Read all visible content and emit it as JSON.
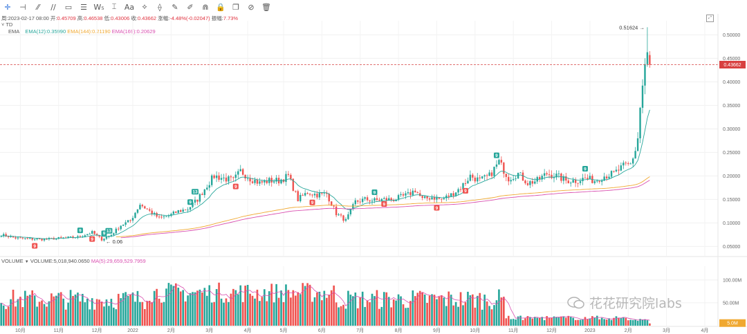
{
  "toolbar": {
    "icons": [
      "crosshair-icon",
      "horizontal-line-icon",
      "trend-line-icon",
      "parallel-channel-icon",
      "rectangle-icon",
      "fib-retracement-icon",
      "elliott-wave-icon",
      "measure-icon",
      "text-icon",
      "pattern-icon",
      "gann-icon",
      "brush-icon",
      "ruler-icon",
      "magnet-icon",
      "lock-icon",
      "copy-icon",
      "hide-icon",
      "trash-icon"
    ],
    "glyphs": [
      "✛",
      "⊣",
      "⁄⁄",
      "∕∕",
      "▭",
      "☰",
      "W₅",
      "⌶",
      "Aa",
      "⟡",
      "⟠",
      "✎",
      "✐",
      "⋒",
      "🔒",
      "❐",
      "⊘",
      "🗑"
    ]
  },
  "info": {
    "date": "周:2023-02-17 08:00",
    "open_label": "开:",
    "open": "0.45709",
    "high_label": "高:",
    "high": "0.46538",
    "low_label": "低:",
    "low": "0.43006",
    "close_label": "收:",
    "close": "0.43662",
    "change_label": "涨幅:",
    "change": "-4.48%(-0.02047)",
    "amp_label": "振幅:",
    "amp": "7.73%"
  },
  "td_label": "TD",
  "ema": {
    "label": "EMA",
    "ema12": "EMA(12):0.35990",
    "ema144": "EMA(144):0.21190",
    "ema169": "EMA(169):0.20629",
    "colors": {
      "ema12": "#26a69a",
      "ema144": "#f0a830",
      "ema169": "#d94fb0"
    }
  },
  "volume_legend": {
    "label": "VOLUME",
    "value": "VOLUME:5,018,940.0650",
    "ma": "MA(5):29,659,529.7959"
  },
  "colors": {
    "up": "#26a69a",
    "down": "#ef5350",
    "price_tag": "#d84040",
    "last_vol_tag": "#f0a830"
  },
  "watermark": "花花研究院labs",
  "chart_data": {
    "type": "candlestick",
    "price_axis": {
      "min": 0.03,
      "max": 0.53,
      "ticks": [
        0.05,
        0.1,
        0.15,
        0.2,
        0.25,
        0.3,
        0.35,
        0.4,
        0.45,
        0.5
      ],
      "tick_labels": [
        "0.05000",
        "0.10000",
        "0.15000",
        "0.20000",
        "0.25000",
        "0.30000",
        "0.35000",
        "0.40000",
        "0.45000",
        "0.50000"
      ]
    },
    "volume_axis": {
      "max": 130,
      "ticks": [
        50,
        100
      ],
      "tick_labels": [
        "50.00M",
        "100.00M"
      ]
    },
    "x_labels": [
      {
        "i": 8,
        "label": "10月"
      },
      {
        "i": 24,
        "label": "11月"
      },
      {
        "i": 40,
        "label": "12月"
      },
      {
        "i": 55,
        "label": "2022"
      },
      {
        "i": 71,
        "label": "2月"
      },
      {
        "i": 87,
        "label": "3月"
      },
      {
        "i": 103,
        "label": "4月"
      },
      {
        "i": 118,
        "label": "5月"
      },
      {
        "i": 134,
        "label": "6月"
      },
      {
        "i": 150,
        "label": "7月"
      },
      {
        "i": 166,
        "label": "8月"
      },
      {
        "i": 182,
        "label": "9月"
      },
      {
        "i": 198,
        "label": "10月"
      },
      {
        "i": 214,
        "label": "11月"
      },
      {
        "i": 230,
        "label": "12月"
      },
      {
        "i": 246,
        "label": "2023"
      },
      {
        "i": 262,
        "label": "2月"
      },
      {
        "i": 278,
        "label": "3月"
      },
      {
        "i": 294,
        "label": "4月"
      }
    ],
    "close_anchors": [
      [
        0,
        0.075
      ],
      [
        6,
        0.068
      ],
      [
        12,
        0.066
      ],
      [
        18,
        0.065
      ],
      [
        25,
        0.068
      ],
      [
        32,
        0.07
      ],
      [
        38,
        0.08
      ],
      [
        42,
        0.065
      ],
      [
        46,
        0.075
      ],
      [
        50,
        0.095
      ],
      [
        54,
        0.105
      ],
      [
        58,
        0.14
      ],
      [
        62,
        0.125
      ],
      [
        66,
        0.11
      ],
      [
        70,
        0.115
      ],
      [
        74,
        0.125
      ],
      [
        78,
        0.13
      ],
      [
        82,
        0.15
      ],
      [
        86,
        0.18
      ],
      [
        89,
        0.2
      ],
      [
        93,
        0.195
      ],
      [
        97,
        0.19
      ],
      [
        100,
        0.21
      ],
      [
        104,
        0.195
      ],
      [
        108,
        0.185
      ],
      [
        112,
        0.19
      ],
      [
        116,
        0.19
      ],
      [
        120,
        0.2
      ],
      [
        124,
        0.15
      ],
      [
        128,
        0.165
      ],
      [
        132,
        0.16
      ],
      [
        136,
        0.162
      ],
      [
        140,
        0.12
      ],
      [
        144,
        0.105
      ],
      [
        148,
        0.145
      ],
      [
        152,
        0.15
      ],
      [
        156,
        0.148
      ],
      [
        160,
        0.15
      ],
      [
        164,
        0.15
      ],
      [
        170,
        0.16
      ],
      [
        173,
        0.17
      ],
      [
        176,
        0.15
      ],
      [
        180,
        0.155
      ],
      [
        184,
        0.15
      ],
      [
        188,
        0.16
      ],
      [
        192,
        0.175
      ],
      [
        196,
        0.2
      ],
      [
        200,
        0.19
      ],
      [
        204,
        0.2
      ],
      [
        208,
        0.23
      ],
      [
        212,
        0.195
      ],
      [
        216,
        0.205
      ],
      [
        220,
        0.185
      ],
      [
        224,
        0.19
      ],
      [
        228,
        0.205
      ],
      [
        232,
        0.2
      ],
      [
        236,
        0.19
      ],
      [
        240,
        0.19
      ],
      [
        244,
        0.195
      ],
      [
        248,
        0.19
      ],
      [
        252,
        0.2
      ],
      [
        256,
        0.205
      ],
      [
        260,
        0.22
      ],
      [
        263,
        0.225
      ],
      [
        265,
        0.255
      ],
      [
        266,
        0.28
      ],
      [
        267,
        0.345
      ],
      [
        268,
        0.39
      ],
      [
        269,
        0.43
      ],
      [
        270,
        0.457
      ],
      [
        271,
        0.4366
      ]
    ],
    "last": {
      "open": 0.45709,
      "high": 0.46538,
      "low": 0.43006,
      "close": 0.43662
    },
    "high_marker": "0.51624",
    "price_tag": "0.43662",
    "last_volume_tag": "5.0M",
    "low_marker": "0.06",
    "td_markers": [
      {
        "i": 14,
        "label": "9",
        "dir": "down"
      },
      {
        "i": 33,
        "label": "9",
        "dir": "up"
      },
      {
        "i": 38,
        "label": "9",
        "dir": "down"
      },
      {
        "i": 43,
        "label": "9",
        "dir": "up"
      },
      {
        "i": 45,
        "label": "13",
        "dir": "up"
      },
      {
        "i": 79,
        "label": "9",
        "dir": "up"
      },
      {
        "i": 81,
        "label": "13",
        "dir": "up"
      },
      {
        "i": 98,
        "label": "9",
        "dir": "down"
      },
      {
        "i": 130,
        "label": "9",
        "dir": "down"
      },
      {
        "i": 156,
        "label": "9",
        "dir": "up"
      },
      {
        "i": 160,
        "label": "9",
        "dir": "down"
      },
      {
        "i": 182,
        "label": "9",
        "dir": "down"
      },
      {
        "i": 194,
        "label": "9",
        "dir": "down"
      },
      {
        "i": 207,
        "label": "9",
        "dir": "up"
      },
      {
        "i": 244,
        "label": "9",
        "dir": "up"
      }
    ]
  }
}
